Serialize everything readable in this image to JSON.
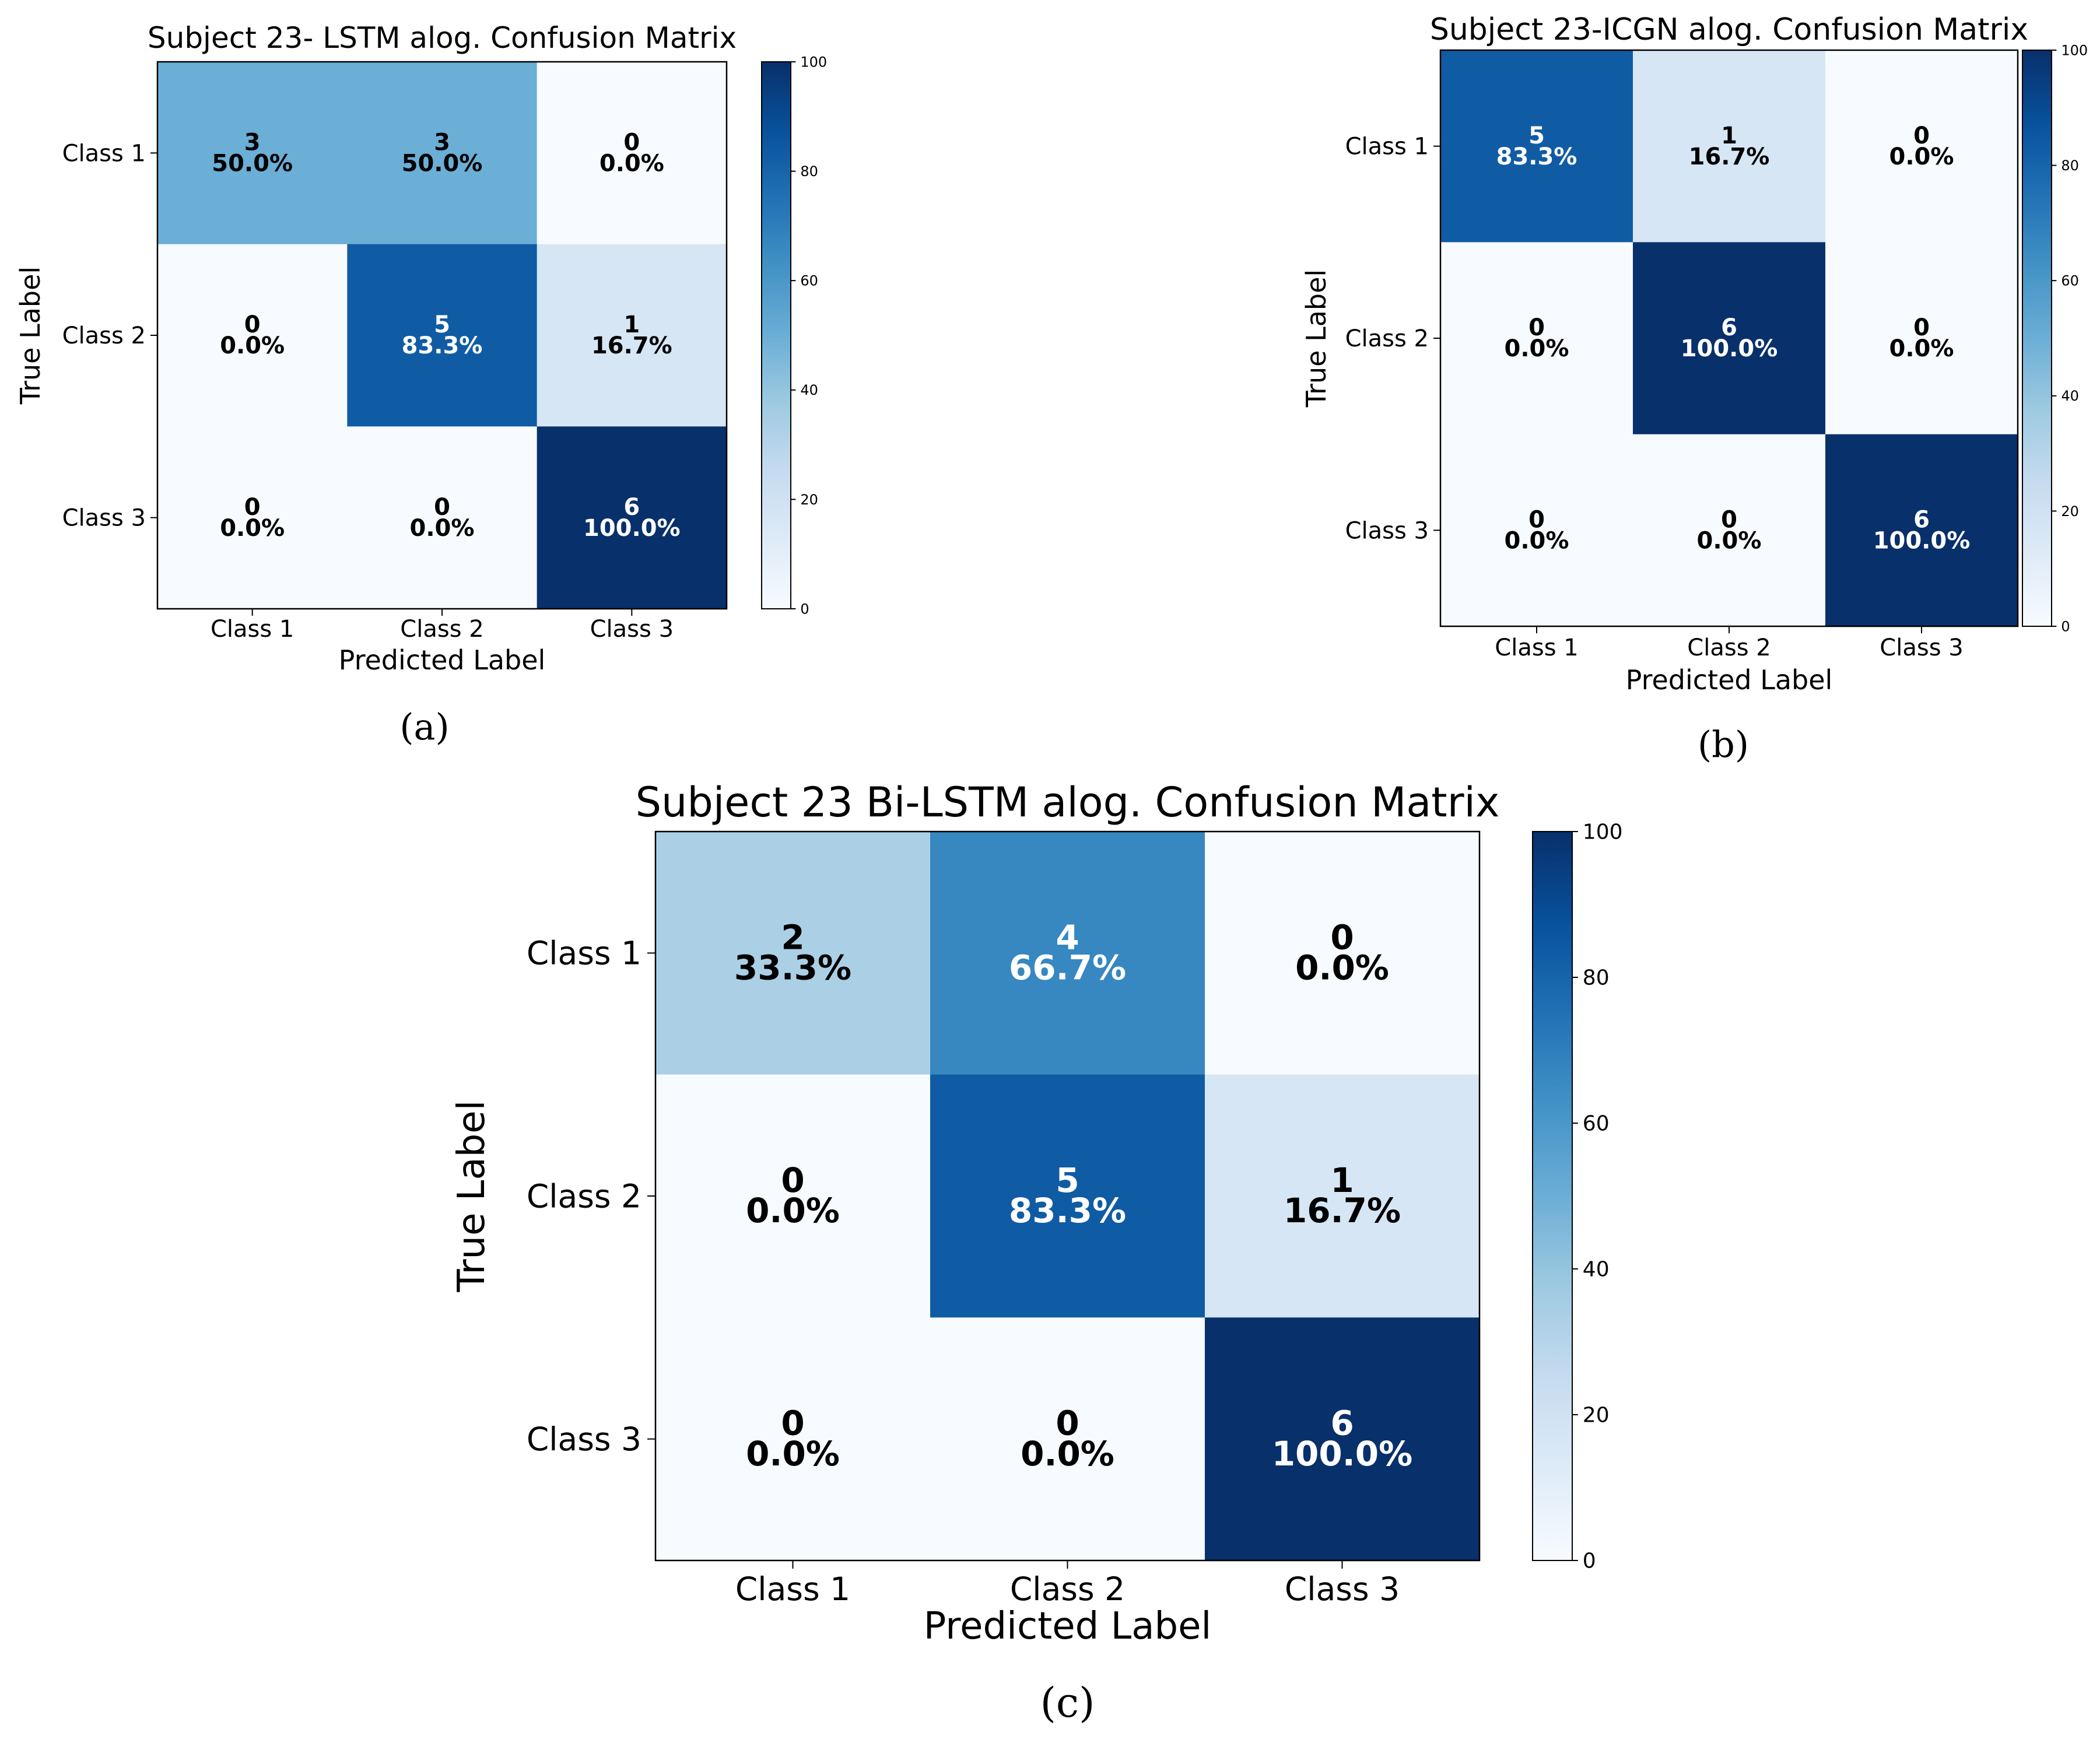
{
  "chart_data": [
    {
      "type": "heatmap",
      "panel_label": "(a)",
      "title": "Subject 23- LSTM alog. Confusion Matrix",
      "xlabel": "Predicted Label",
      "ylabel": "True Label",
      "x_categories": [
        "Class 1",
        "Class 2",
        "Class 3"
      ],
      "y_categories": [
        "Class 1",
        "Class 2",
        "Class 3"
      ],
      "counts": [
        [
          3,
          3,
          0
        ],
        [
          0,
          5,
          1
        ],
        [
          0,
          0,
          6
        ]
      ],
      "percent_labels": [
        [
          "50.0%",
          "50.0%",
          "0.0%"
        ],
        [
          "0.0%",
          "83.3%",
          "16.7%"
        ],
        [
          "0.0%",
          "0.0%",
          "100.0%"
        ]
      ],
      "percent_values": [
        [
          50.0,
          50.0,
          0.0
        ],
        [
          0.0,
          83.3,
          16.7
        ],
        [
          0.0,
          0.0,
          100.0
        ]
      ],
      "colorbar": {
        "min": 0,
        "max": 100,
        "ticks": [
          "0",
          "20",
          "40",
          "60",
          "80",
          "100"
        ]
      },
      "colormap": "Blues"
    },
    {
      "type": "heatmap",
      "panel_label": "(b)",
      "title": "Subject 23-ICGN alog. Confusion Matrix",
      "xlabel": "Predicted Label",
      "ylabel": "True Label",
      "x_categories": [
        "Class 1",
        "Class 2",
        "Class 3"
      ],
      "y_categories": [
        "Class 1",
        "Class 2",
        "Class 3"
      ],
      "counts": [
        [
          5,
          1,
          0
        ],
        [
          0,
          6,
          0
        ],
        [
          0,
          0,
          6
        ]
      ],
      "percent_labels": [
        [
          "83.3%",
          "16.7%",
          "0.0%"
        ],
        [
          "0.0%",
          "100.0%",
          "0.0%"
        ],
        [
          "0.0%",
          "0.0%",
          "100.0%"
        ]
      ],
      "percent_values": [
        [
          83.3,
          16.7,
          0.0
        ],
        [
          0.0,
          100.0,
          0.0
        ],
        [
          0.0,
          0.0,
          100.0
        ]
      ],
      "colorbar": {
        "min": 0,
        "max": 100,
        "ticks": [
          "0",
          "20",
          "40",
          "60",
          "80",
          "100"
        ]
      },
      "colormap": "Blues"
    },
    {
      "type": "heatmap",
      "panel_label": "(c)",
      "title": "Subject 23 Bi-LSTM alog. Confusion Matrix",
      "xlabel": "Predicted Label",
      "ylabel": "True Label",
      "x_categories": [
        "Class 1",
        "Class 2",
        "Class 3"
      ],
      "y_categories": [
        "Class 1",
        "Class 2",
        "Class 3"
      ],
      "counts": [
        [
          2,
          4,
          0
        ],
        [
          0,
          5,
          1
        ],
        [
          0,
          0,
          6
        ]
      ],
      "percent_labels": [
        [
          "33.3%",
          "66.7%",
          "0.0%"
        ],
        [
          "0.0%",
          "83.3%",
          "16.7%"
        ],
        [
          "0.0%",
          "0.0%",
          "100.0%"
        ]
      ],
      "percent_values": [
        [
          33.3,
          66.7,
          0.0
        ],
        [
          0.0,
          83.3,
          16.7
        ],
        [
          0.0,
          0.0,
          100.0
        ]
      ],
      "colorbar": {
        "min": 0,
        "max": 100,
        "ticks": [
          "0",
          "20",
          "40",
          "60",
          "80",
          "100"
        ]
      },
      "colormap": "Blues"
    }
  ]
}
